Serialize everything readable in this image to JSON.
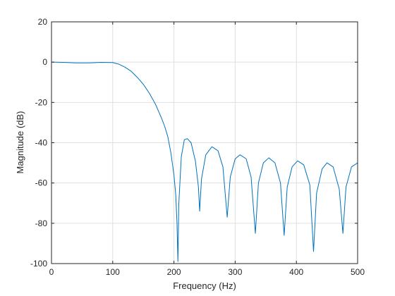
{
  "chart_data": {
    "type": "line",
    "title": "",
    "xlabel": "Frequency (Hz)",
    "ylabel": "Magnitude (dB)",
    "xlim": [
      0,
      500
    ],
    "ylim": [
      -100,
      20
    ],
    "xticks": [
      0,
      100,
      200,
      300,
      400,
      500
    ],
    "yticks": [
      20,
      0,
      -20,
      -40,
      -60,
      -80,
      -100
    ],
    "grid": true,
    "line_color": "#0072bd",
    "series": [
      {
        "x": [
          0,
          20,
          40,
          60,
          80,
          100,
          110,
          120,
          130,
          140,
          150,
          160,
          170,
          180,
          185,
          190,
          195,
          200,
          203,
          205,
          206.5,
          208,
          212,
          217,
          222,
          228,
          235,
          240,
          242,
          245,
          252,
          262,
          272,
          280,
          287,
          292,
          300,
          308,
          318,
          326,
          333,
          338,
          346,
          355,
          365,
          374,
          380,
          385,
          393,
          402,
          412,
          422,
          428,
          433,
          442,
          450,
          460,
          470,
          476,
          481,
          490,
          500
        ],
        "y": [
          0,
          -0.1,
          -0.4,
          -0.4,
          -0.1,
          -0.2,
          -1.0,
          -2.5,
          -4.5,
          -7.5,
          -11,
          -15.5,
          -21,
          -28,
          -32,
          -37,
          -45,
          -56,
          -66,
          -80,
          -99,
          -70,
          -47,
          -38.5,
          -38,
          -40,
          -49,
          -62,
          -74,
          -58,
          -46,
          -42,
          -44,
          -52,
          -77,
          -57,
          -48,
          -46,
          -48,
          -57,
          -85,
          -60,
          -50,
          -47.5,
          -50,
          -60,
          -86,
          -62,
          -52,
          -49,
          -51,
          -61,
          -94,
          -65,
          -53,
          -50,
          -52,
          -63,
          -85,
          -62,
          -52,
          -50
        ]
      }
    ]
  }
}
